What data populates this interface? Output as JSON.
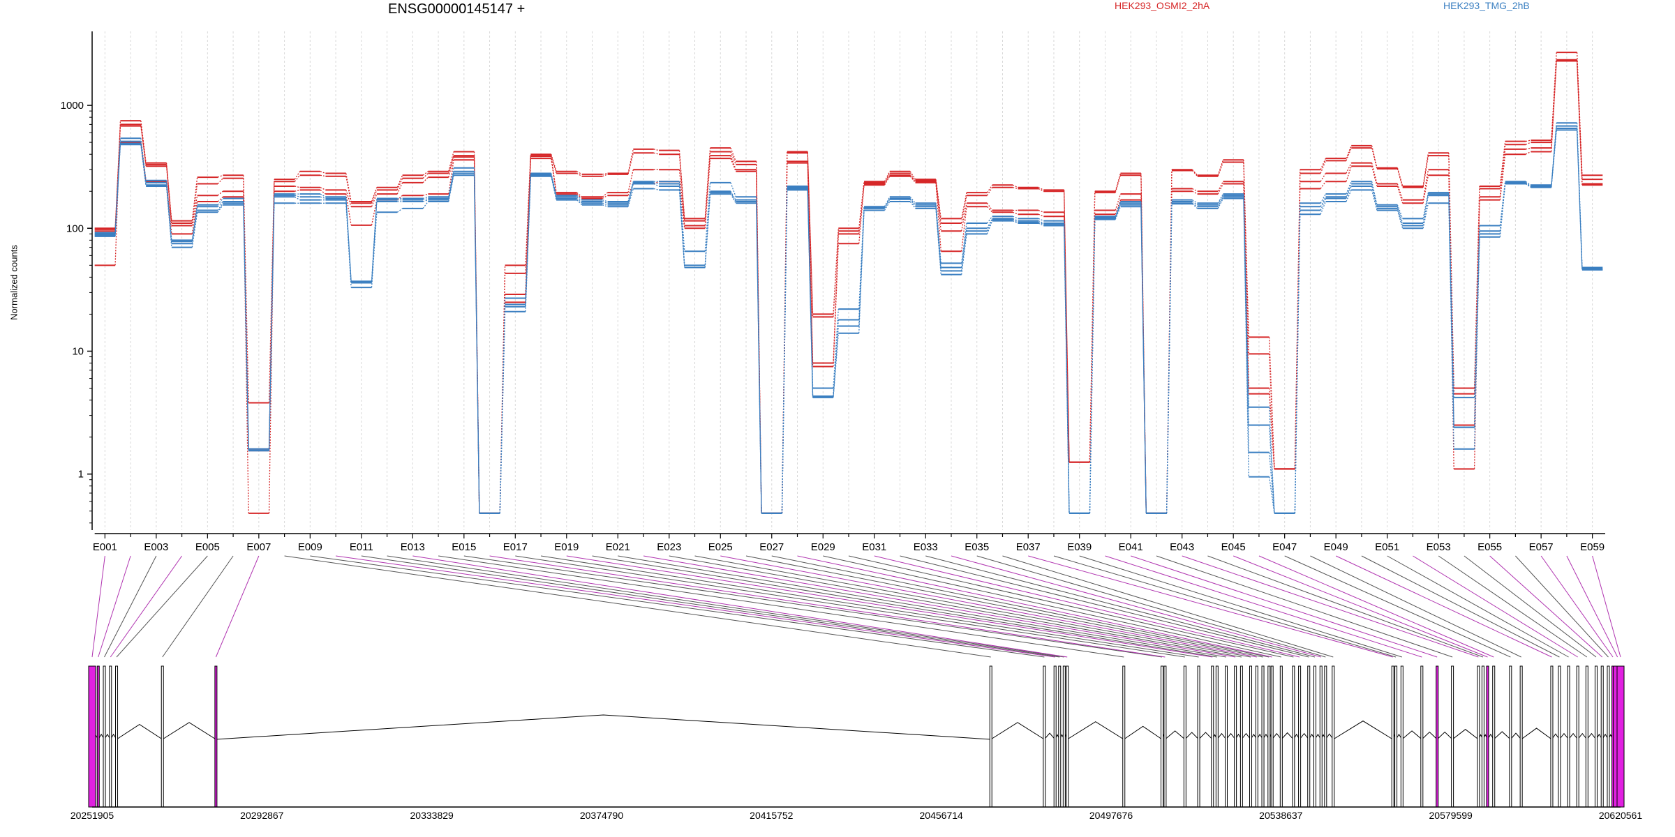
{
  "chart_data": {
    "type": "line",
    "title": "ENSG00000145147 +",
    "ylabel": "Normalized counts",
    "yscale": "log",
    "ylim": [
      0.35,
      4000
    ],
    "yticks": [
      1,
      10,
      100,
      1000
    ],
    "ytick_labels": [
      "1",
      "10",
      "100",
      "1000"
    ],
    "exons": [
      "E001",
      "E002",
      "E003",
      "E004",
      "E005",
      "E006",
      "E007",
      "E008",
      "E009",
      "E010",
      "E011",
      "E012",
      "E013",
      "E014",
      "E015",
      "E016",
      "E017",
      "E018",
      "E019",
      "E020",
      "E021",
      "E022",
      "E023",
      "E024",
      "E025",
      "E026",
      "E027",
      "E028",
      "E029",
      "E030",
      "E031",
      "E032",
      "E033",
      "E034",
      "E035",
      "E036",
      "E037",
      "E038",
      "E039",
      "E040",
      "E041",
      "E042",
      "E043",
      "E044",
      "E045",
      "E046",
      "E047",
      "E048",
      "E049",
      "E050",
      "E051",
      "E052",
      "E053",
      "E054",
      "E055",
      "E056",
      "E057",
      "E058",
      "E059"
    ],
    "exon_tick_labels": [
      "E001",
      "E003",
      "E005",
      "E007",
      "E009",
      "E011",
      "E013",
      "E015",
      "E017",
      "E019",
      "E021",
      "E023",
      "E025",
      "E027",
      "E029",
      "E031",
      "E033",
      "E035",
      "E037",
      "E039",
      "E041",
      "E043",
      "E045",
      "E047",
      "E049",
      "E051",
      "E053",
      "E055",
      "E057",
      "E059"
    ],
    "legend": [
      {
        "name": "HEK293_OSMI2_2hA",
        "color": "#d62728"
      },
      {
        "name": "HEK293_TMG_2hB",
        "color": "#3a7fc1"
      }
    ],
    "series": [
      {
        "group": "HEK293_OSMI2_2hA",
        "values": [
          50,
          750,
          340,
          115,
          260,
          270,
          3.8,
          250,
          290,
          280,
          165,
          215,
          270,
          290,
          420,
          0.48,
          50,
          400,
          290,
          275,
          280,
          440,
          430,
          120,
          450,
          350,
          0.48,
          420,
          20,
          100,
          240,
          290,
          250,
          120,
          195,
          225,
          215,
          205,
          1.25,
          200,
          280,
          0.48,
          300,
          270,
          360,
          13,
          1.1,
          300,
          370,
          470,
          310,
          220,
          410,
          5,
          220,
          510,
          520,
          2700,
          270
        ]
      },
      {
        "group": "HEK293_OSMI2_2hA",
        "values": [
          100,
          700,
          330,
          110,
          230,
          255,
          1.6,
          240,
          270,
          265,
          160,
          205,
          255,
          280,
          390,
          0.48,
          43,
          390,
          280,
          265,
          275,
          410,
          400,
          115,
          420,
          330,
          0.48,
          410,
          19,
          95,
          235,
          280,
          245,
          110,
          185,
          215,
          210,
          200,
          1.25,
          195,
          270,
          0.48,
          295,
          265,
          345,
          9.5,
          1.1,
          280,
          355,
          450,
          305,
          215,
          390,
          4.5,
          210,
          480,
          500,
          2350,
          250
        ]
      },
      {
        "group": "HEK293_OSMI2_2hA",
        "values": [
          98,
          680,
          320,
          105,
          185,
          200,
          0.48,
          220,
          215,
          205,
          150,
          190,
          235,
          260,
          380,
          0.48,
          29,
          385,
          195,
          180,
          195,
          300,
          300,
          105,
          390,
          300,
          0.48,
          350,
          8,
          90,
          230,
          270,
          240,
          95,
          160,
          140,
          140,
          135,
          1.25,
          140,
          190,
          0.48,
          210,
          200,
          240,
          5,
          1.1,
          240,
          280,
          340,
          230,
          170,
          300,
          1.1,
          180,
          440,
          450,
          2300,
          230
        ]
      },
      {
        "group": "HEK293_OSMI2_2hA",
        "values": [
          95,
          500,
          240,
          90,
          165,
          180,
          1.55,
          200,
          205,
          190,
          106,
          170,
          185,
          190,
          360,
          0.48,
          25,
          370,
          190,
          175,
          185,
          230,
          240,
          100,
          370,
          290,
          0.48,
          340,
          7.5,
          75,
          225,
          265,
          235,
          65,
          150,
          135,
          130,
          125,
          1.25,
          130,
          170,
          0.48,
          200,
          190,
          230,
          4.5,
          1.1,
          210,
          240,
          320,
          220,
          160,
          270,
          2.5,
          170,
          400,
          420,
          2300,
          225
        ]
      },
      {
        "group": "HEK293_TMG_2hB",
        "values": [
          92,
          540,
          245,
          80,
          155,
          175,
          1.6,
          190,
          190,
          180,
          37,
          175,
          175,
          180,
          310,
          0.48,
          27,
          280,
          185,
          170,
          165,
          240,
          240,
          65,
          235,
          180,
          0.48,
          220,
          5,
          22,
          150,
          180,
          160,
          52,
          110,
          125,
          120,
          115,
          0.48,
          125,
          165,
          0.48,
          170,
          160,
          190,
          3.5,
          0.48,
          160,
          190,
          240,
          155,
          120,
          195,
          4.2,
          105,
          240,
          225,
          720,
          48
        ]
      },
      {
        "group": "HEK293_TMG_2hB",
        "values": [
          90,
          510,
          235,
          78,
          150,
          165,
          1.6,
          185,
          180,
          175,
          37,
          170,
          170,
          175,
          290,
          0.48,
          24,
          275,
          180,
          165,
          160,
          235,
          230,
          50,
          200,
          170,
          0.48,
          215,
          4.3,
          18,
          148,
          175,
          155,
          48,
          100,
          120,
          115,
          110,
          0.48,
          122,
          160,
          0.48,
          165,
          155,
          185,
          2.5,
          0.48,
          150,
          180,
          230,
          150,
          110,
          190,
          2.4,
          95,
          235,
          220,
          680,
          47
        ]
      },
      {
        "group": "HEK293_TMG_2hB",
        "values": [
          88,
          490,
          225,
          75,
          140,
          160,
          1.55,
          180,
          170,
          170,
          36,
          165,
          165,
          170,
          280,
          0.48,
          23,
          270,
          175,
          160,
          155,
          230,
          220,
          48,
          195,
          165,
          0.48,
          210,
          4.3,
          16,
          145,
          172,
          150,
          45,
          95,
          118,
          112,
          108,
          0.48,
          120,
          155,
          0.48,
          160,
          150,
          180,
          1.5,
          0.48,
          140,
          175,
          220,
          145,
          105,
          185,
          2.4,
          90,
          232,
          218,
          650,
          46
        ]
      },
      {
        "group": "HEK293_TMG_2hB",
        "values": [
          86,
          480,
          220,
          70,
          135,
          155,
          1.55,
          160,
          160,
          160,
          33,
          135,
          145,
          165,
          270,
          0.48,
          21,
          265,
          170,
          155,
          150,
          210,
          205,
          48,
          190,
          160,
          0.48,
          205,
          4.2,
          14,
          140,
          165,
          145,
          42,
          90,
          115,
          110,
          105,
          0.48,
          118,
          150,
          0.48,
          158,
          145,
          175,
          0.95,
          0.48,
          130,
          165,
          205,
          140,
          100,
          160,
          1.6,
          85,
          230,
          215,
          630,
          46
        ]
      }
    ],
    "genome_axis_ticks": [
      "20251905",
      "20292867",
      "20333829",
      "20374790",
      "20415752",
      "20456714",
      "20497676",
      "20538637",
      "20579599",
      "20620561"
    ],
    "genome_range": [
      20251905,
      20620561
    ]
  }
}
